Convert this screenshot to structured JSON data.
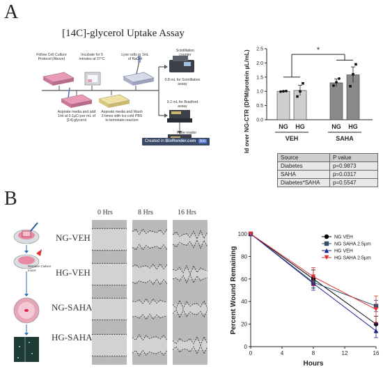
{
  "panel_a": {
    "letter": "A",
    "title": "[14C]-glycerol Uptake Assay",
    "steps": {
      "s1": "Follow Cell Culture Protocol (Above)",
      "s2": "Incubate for 5 minutes at 37°C",
      "s3": "Lyse cells in 1mL of NaOH",
      "s4": "Aspirate media and add 1ml at 0.1µCi per mL of [14]-glycerol",
      "s5": "Aspirate media and Wash 3 times with Ice cold PBS to terminate reaction",
      "scint": "Scintillation counter",
      "scint_vol": "0.8 mL for Scintillation assay",
      "brad_vol": "0.2 mL for Bradford assay",
      "plate": "Plate reader"
    },
    "credit_prefix": "Created in ",
    "credit_brand": "BioRender.com",
    "credit_badge": "bio"
  },
  "chart_a": {
    "type": "bar",
    "ylabel": "Fold over NG-CTR (DPM/protein µL/mL)",
    "yticks": [
      "0.0",
      "0.5",
      "1.0",
      "1.5",
      "2.0",
      "2.5"
    ],
    "ylim": [
      0,
      2.5
    ],
    "significance": "*",
    "groups": [
      "VEH",
      "SAHA"
    ],
    "categories": [
      "NG",
      "HG",
      "NG",
      "HG"
    ],
    "values": [
      1.0,
      1.03,
      1.3,
      1.58
    ],
    "errors": [
      0.02,
      0.18,
      0.14,
      0.28
    ],
    "points": [
      [
        0.99,
        1.0,
        1.01
      ],
      [
        0.82,
        1.0,
        1.28
      ],
      [
        1.2,
        1.32,
        1.45
      ],
      [
        1.18,
        1.6,
        1.95
      ]
    ],
    "colors": [
      "#cfcfcf",
      "#cfcfcf",
      "#8a8a8a",
      "#8a8a8a"
    ]
  },
  "table": {
    "head": {
      "source": "Source",
      "pvalue": "P value"
    },
    "rows": [
      {
        "source": "Diabetes",
        "p": "p=0.9873"
      },
      {
        "source": "SAHA",
        "p": "p=0.0317"
      },
      {
        "source": "Diabetes*SAHA",
        "p": "p=0.5547"
      }
    ]
  },
  "panel_b": {
    "letter": "B",
    "remove_text": "Remove Culture Insert",
    "time_labels": [
      "0 Hrs",
      "8 Hrs",
      "16 Hrs"
    ],
    "row_labels": [
      "NG-VEH",
      "HG-VEH",
      "NG-SAHA",
      "HG-SAHA"
    ]
  },
  "chart_b": {
    "type": "line",
    "xlabel": "Hours",
    "ylabel": "Percent Wound Remaining",
    "x": [
      0,
      8,
      16
    ],
    "xticks": [
      "0",
      "4",
      "8",
      "12",
      "16"
    ],
    "yticks": [
      "0",
      "20",
      "40",
      "60",
      "80",
      "100"
    ],
    "xlim": [
      0,
      16
    ],
    "ylim": [
      0,
      100
    ],
    "legend_position": "top-right",
    "series": [
      {
        "name": "NG VEH",
        "values": [
          100,
          60,
          20
        ],
        "errors": [
          0,
          8,
          7
        ],
        "color": "#000000",
        "marker": "circle"
      },
      {
        "name": "NG SAHA 2.5µm",
        "values": [
          100,
          57,
          36
        ],
        "errors": [
          0,
          5,
          5
        ],
        "color": "#2f4f6b",
        "marker": "square"
      },
      {
        "name": "HG VEH",
        "values": [
          100,
          56,
          14
        ],
        "errors": [
          0,
          6,
          6
        ],
        "color": "#1f1f8f",
        "marker": "triangle-up"
      },
      {
        "name": "HG SAHA 2.5µm",
        "values": [
          100,
          62,
          33
        ],
        "errors": [
          0,
          8,
          12
        ],
        "color": "#e03030",
        "marker": "triangle-down"
      }
    ]
  }
}
